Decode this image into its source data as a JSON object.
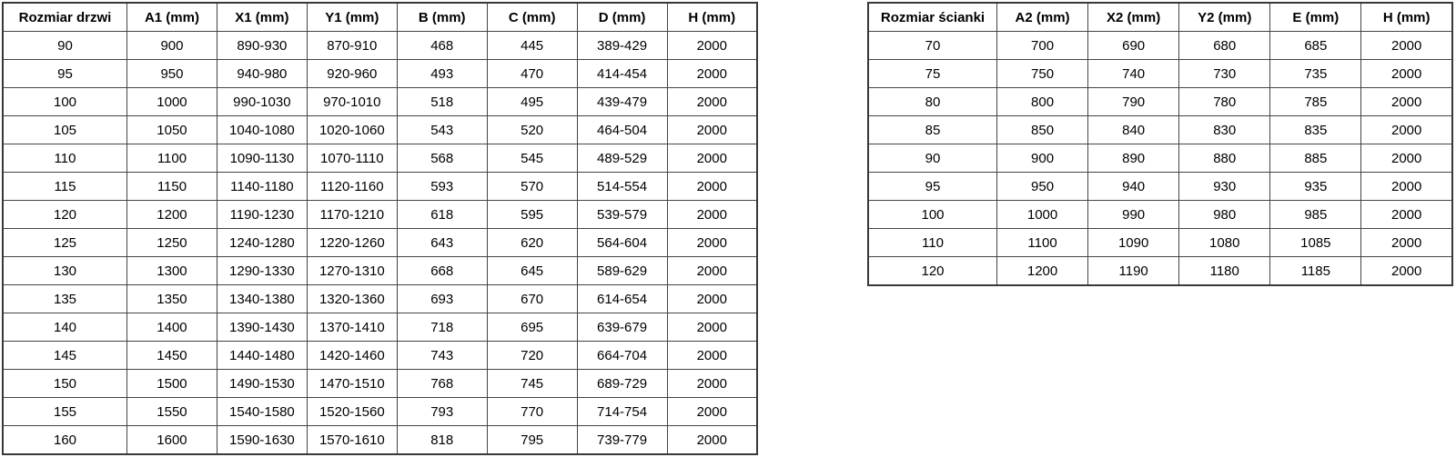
{
  "colors": {
    "background": "#ffffff",
    "table_border": "#3a3a3a",
    "text": "#000000"
  },
  "tables": {
    "doors": {
      "headers": [
        "Rozmiar drzwi",
        "A1 (mm)",
        "X1 (mm)",
        "Y1 (mm)",
        "B (mm)",
        "C (mm)",
        "D (mm)",
        "H (mm)"
      ],
      "rows": [
        [
          "90",
          "900",
          "890-930",
          "870-910",
          "468",
          "445",
          "389-429",
          "2000"
        ],
        [
          "95",
          "950",
          "940-980",
          "920-960",
          "493",
          "470",
          "414-454",
          "2000"
        ],
        [
          "100",
          "1000",
          "990-1030",
          "970-1010",
          "518",
          "495",
          "439-479",
          "2000"
        ],
        [
          "105",
          "1050",
          "1040-1080",
          "1020-1060",
          "543",
          "520",
          "464-504",
          "2000"
        ],
        [
          "110",
          "1100",
          "1090-1130",
          "1070-1110",
          "568",
          "545",
          "489-529",
          "2000"
        ],
        [
          "115",
          "1150",
          "1140-1180",
          "1120-1160",
          "593",
          "570",
          "514-554",
          "2000"
        ],
        [
          "120",
          "1200",
          "1190-1230",
          "1170-1210",
          "618",
          "595",
          "539-579",
          "2000"
        ],
        [
          "125",
          "1250",
          "1240-1280",
          "1220-1260",
          "643",
          "620",
          "564-604",
          "2000"
        ],
        [
          "130",
          "1300",
          "1290-1330",
          "1270-1310",
          "668",
          "645",
          "589-629",
          "2000"
        ],
        [
          "135",
          "1350",
          "1340-1380",
          "1320-1360",
          "693",
          "670",
          "614-654",
          "2000"
        ],
        [
          "140",
          "1400",
          "1390-1430",
          "1370-1410",
          "718",
          "695",
          "639-679",
          "2000"
        ],
        [
          "145",
          "1450",
          "1440-1480",
          "1420-1460",
          "743",
          "720",
          "664-704",
          "2000"
        ],
        [
          "150",
          "1500",
          "1490-1530",
          "1470-1510",
          "768",
          "745",
          "689-729",
          "2000"
        ],
        [
          "155",
          "1550",
          "1540-1580",
          "1520-1560",
          "793",
          "770",
          "714-754",
          "2000"
        ],
        [
          "160",
          "1600",
          "1590-1630",
          "1570-1610",
          "818",
          "795",
          "739-779",
          "2000"
        ]
      ]
    },
    "walls": {
      "headers": [
        "Rozmiar ścianki",
        "A2 (mm)",
        "X2 (mm)",
        "Y2 (mm)",
        "E (mm)",
        "H (mm)"
      ],
      "rows": [
        [
          "70",
          "700",
          "690",
          "680",
          "685",
          "2000"
        ],
        [
          "75",
          "750",
          "740",
          "730",
          "735",
          "2000"
        ],
        [
          "80",
          "800",
          "790",
          "780",
          "785",
          "2000"
        ],
        [
          "85",
          "850",
          "840",
          "830",
          "835",
          "2000"
        ],
        [
          "90",
          "900",
          "890",
          "880",
          "885",
          "2000"
        ],
        [
          "95",
          "950",
          "940",
          "930",
          "935",
          "2000"
        ],
        [
          "100",
          "1000",
          "990",
          "980",
          "985",
          "2000"
        ],
        [
          "110",
          "1100",
          "1090",
          "1080",
          "1085",
          "2000"
        ],
        [
          "120",
          "1200",
          "1190",
          "1180",
          "1185",
          "2000"
        ]
      ]
    }
  }
}
